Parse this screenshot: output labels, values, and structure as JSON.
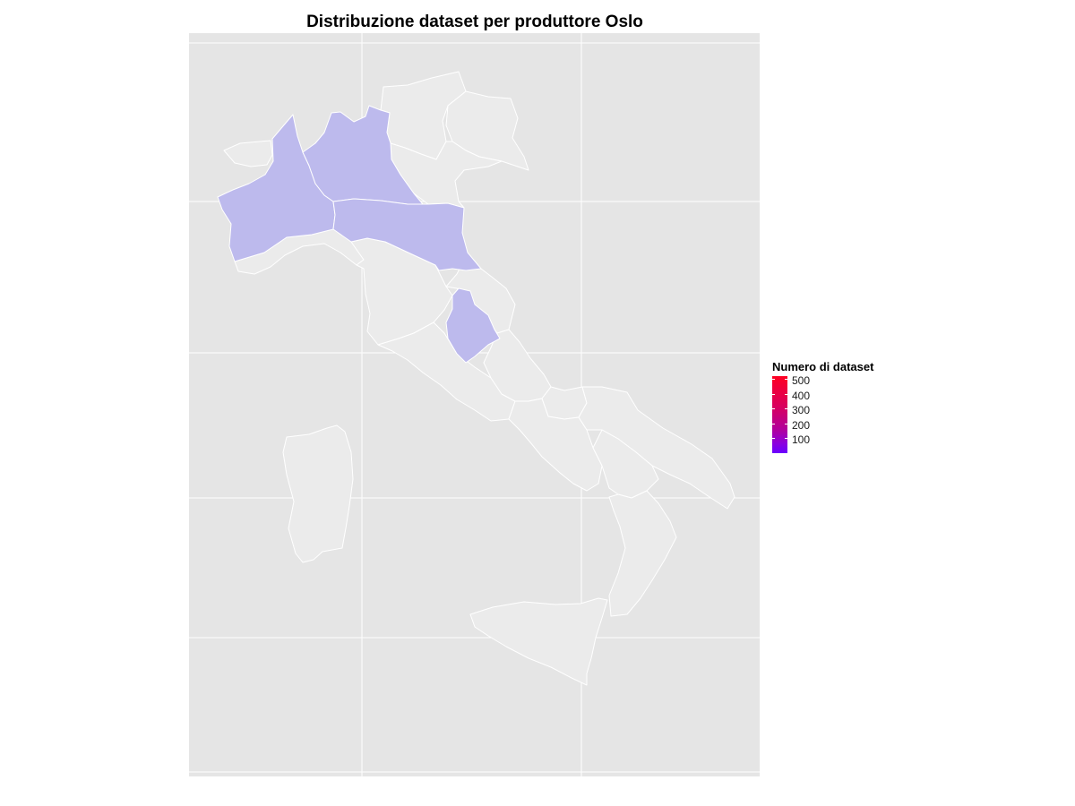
{
  "chart_data": {
    "type": "choropleth map",
    "title": "Distribuzione dataset per produttore Oslo",
    "colors": {
      "panel_background": "#e5e5e5",
      "grid": "#ffffff",
      "no_data_fill": "#ebebeb",
      "low_fill": "#bdbaed",
      "border": "#ffffff",
      "scale_high": "#ff0022",
      "scale_low": "#6a00ff"
    },
    "legend": {
      "title": "Numero di dataset",
      "placement": "right",
      "tick_labels": [
        "500",
        "400",
        "300",
        "200",
        "100"
      ]
    },
    "regions": [
      {
        "name": "Piemonte",
        "has_data": true
      },
      {
        "name": "Lombardia",
        "has_data": true
      },
      {
        "name": "Emilia-Romagna",
        "has_data": true
      },
      {
        "name": "Umbria",
        "has_data": true
      },
      {
        "name": "Valle d'Aosta",
        "has_data": false
      },
      {
        "name": "Trentino-Alto Adige",
        "has_data": false
      },
      {
        "name": "Veneto",
        "has_data": false
      },
      {
        "name": "Friuli-Venezia Giulia",
        "has_data": false
      },
      {
        "name": "Liguria",
        "has_data": false
      },
      {
        "name": "Toscana",
        "has_data": false
      },
      {
        "name": "Marche",
        "has_data": false
      },
      {
        "name": "Lazio",
        "has_data": false
      },
      {
        "name": "Abruzzo",
        "has_data": false
      },
      {
        "name": "Molise",
        "has_data": false
      },
      {
        "name": "Campania",
        "has_data": false
      },
      {
        "name": "Puglia",
        "has_data": false
      },
      {
        "name": "Basilicata",
        "has_data": false
      },
      {
        "name": "Calabria",
        "has_data": false
      },
      {
        "name": "Sicilia",
        "has_data": false
      },
      {
        "name": "Sardegna",
        "has_data": false
      }
    ]
  }
}
